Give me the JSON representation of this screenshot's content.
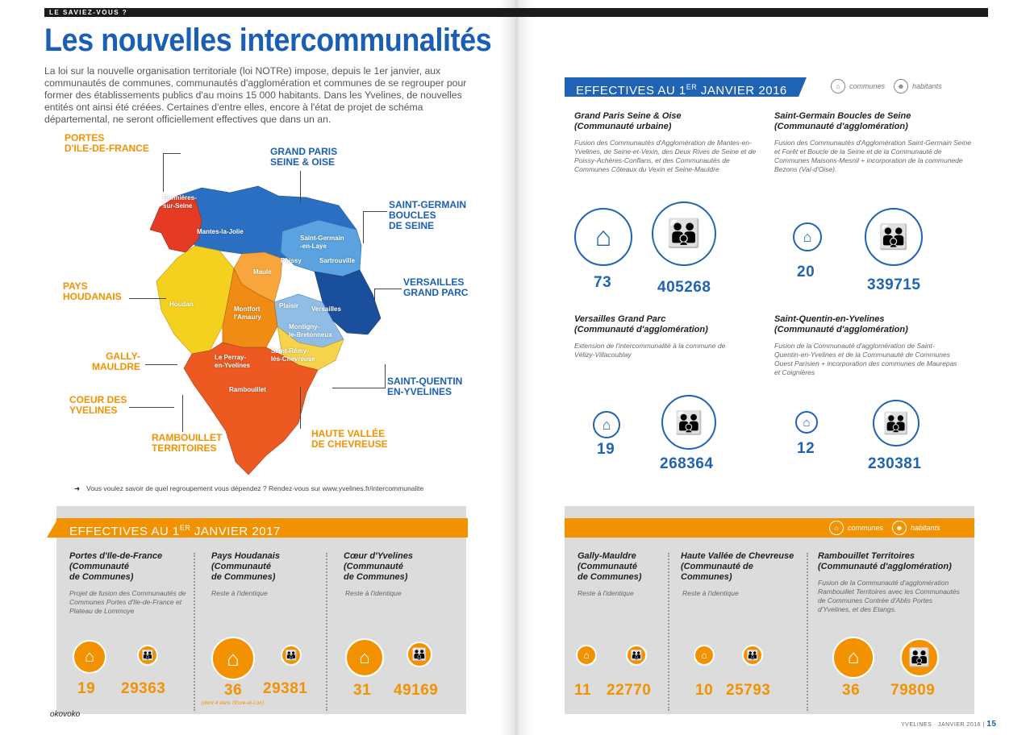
{
  "header": {
    "kicker": "LE SAVIEZ-VOUS ?"
  },
  "title": "Les nouvelles intercommunalités",
  "intro": "La loi sur la nouvelle organisation territoriale (loi NOTRe) impose, depuis le 1er janvier, aux communautés de communes, communautés d'agglomération et communes de se regrouper pour former des établissements publics d'au moins 15 000 habitants. Dans les Yvelines, de nouvelles entités ont ainsi été créées. Certaines d'entre elles, encore à l'état de projet de schéma départemental, ne seront officiellement effectives que dans un an.",
  "map": {
    "regions": {
      "portes": "PORTES\nD'ILE-DE-FRANCE",
      "gpso": "GRAND PARIS\nSEINE & OISE",
      "sgbs": "SAINT-GERMAIN\nBOUCLES\nDE SEINE",
      "houdanais": "PAYS\nHOUDANAIS",
      "versailles": "VERSAILLES\nGRAND PARC",
      "gally": "GALLY-\nMAULDRE",
      "sqy": "SAINT-QUENTIN\nEN-YVELINES",
      "coeur": "COEUR DES\nYVELINES",
      "rambouillet": "RAMBOUILLET\nTERRITOIRES",
      "hvc": "HAUTE VALLÉE\nDE CHEVREUSE"
    },
    "towns": {
      "bonnieres": "Bonnières-\nsur-Seine",
      "mantes": "Mantes-la-Jolie",
      "sgel": "Saint-Germain\n-en-Laye",
      "poissy": "Poissy",
      "sartrouville": "Sartrouville",
      "maule": "Maule",
      "houdan": "Houdan",
      "montfort": "Montfort\nl'Amaury",
      "plaisir": "Plaisir",
      "versailles": "Versailles",
      "montigny": "Montigny-\nle-Bretonneux",
      "perray": "Le Perray-\nen-Yvelines",
      "remy": "Saint-Rémy-\nlès-Chevreuse",
      "rambouillet": "Rambouillet"
    }
  },
  "footnote": "Vous voulez savoir de quel regroupement vous dépendez ? Rendez-vous sur www.yvelines.fr/intercommunalite",
  "legend": {
    "communes": "communes",
    "habitants": "habitants"
  },
  "section2016": {
    "banner": "EFFECTIVES AU 1",
    "banner_sup": "ER",
    "banner_tail": " JANVIER 2016",
    "cards": [
      {
        "name": "Grand Paris Seine & Oise\n(Communauté urbaine)",
        "desc": "Fusion des Communautés d'Agglomération de Mantes-en-Yvelines, de Seine-et-Vexin, des Deux Rives de Seine et de Poissy-Achères-Conflans, et des Communautés de Communes Côteaux du Vexin et Seine-Mauldre",
        "communes": "73",
        "habitants": "405268"
      },
      {
        "name": "Saint-Germain Boucles de Seine\n(Communauté d'agglomération)",
        "desc": "Fusion des Communautés d'Agglomération Saint-Germain Seine et Forêt et Boucle de la Seine et de la Communauté de Communes Maisons-Mesnil + incorporation de la communede Bezons (Val-d'Oise).",
        "communes": "20",
        "habitants": "339715"
      },
      {
        "name": "Versailles Grand Parc\n(Communauté d'agglomération)",
        "desc": "Extension de l'intercommunalité à la commune de Vélizy-Villacoublay",
        "communes": "19",
        "habitants": "268364"
      },
      {
        "name": "Saint-Quentin-en-Yvelines\n(Communauté d'agglomération)",
        "desc": "Fusion de la Communauté d'agglomération de Saint-Quentin-en-Yvelines et de la Communauté de Communes Ouest Parisien + incorporation des communes de Maurepas et Coignières",
        "communes": "12",
        "habitants": "230381"
      }
    ]
  },
  "section2017": {
    "banner": "EFFECTIVES AU 1",
    "banner_sup": "ER",
    "banner_tail": " JANVIER 2017",
    "cards": [
      {
        "name": "Portes d'Ile-de-France\n(Communauté\nde Communes)",
        "desc": "Projet de fusion des Communautés de Communes Portes d'Ile-de-France et Plateau de Lommoye",
        "communes": "19",
        "habitants": "29363"
      },
      {
        "name": "Pays Houdanais\n(Communauté\nde Communes)",
        "desc": "Reste à l'identique",
        "communes": "36",
        "habitants": "29381",
        "note": "(dont 4 dans l'Eure-et-Loir)"
      },
      {
        "name": "Cœur d'Yvelines\n(Communauté\nde Communes)",
        "desc": "Reste à l'identique",
        "communes": "31",
        "habitants": "49169"
      }
    ],
    "cards_right": [
      {
        "name": "Gally-Mauldre\n(Communauté\nde Communes)",
        "desc": "Reste à l'identique",
        "communes": "11",
        "habitants": "22770"
      },
      {
        "name": "Haute Vallée de Chevreuse\n(Communauté de\nCommunes)",
        "desc": "Reste à l'identique",
        "communes": "10",
        "habitants": "25793"
      },
      {
        "name": "Rambouillet Territoires\n(Communauté d'agglomération)",
        "desc": "Fusion de la Communauté d'agglomération Rambouillet Territoires avec les Communautés de Communes Contrée d'Ablis Portes d'Yvelines, et des Etangs.",
        "communes": "36",
        "habitants": "79809"
      }
    ]
  },
  "folio": {
    "left": "okovoko",
    "right_meta": "YVELINES · JANVIER 2016 |",
    "right_page": "15"
  },
  "colors": {
    "blue": "#1f63b5",
    "orange": "#f39200",
    "title_blue": "#1a5fb4",
    "grey_box": "#dcdcdc"
  }
}
